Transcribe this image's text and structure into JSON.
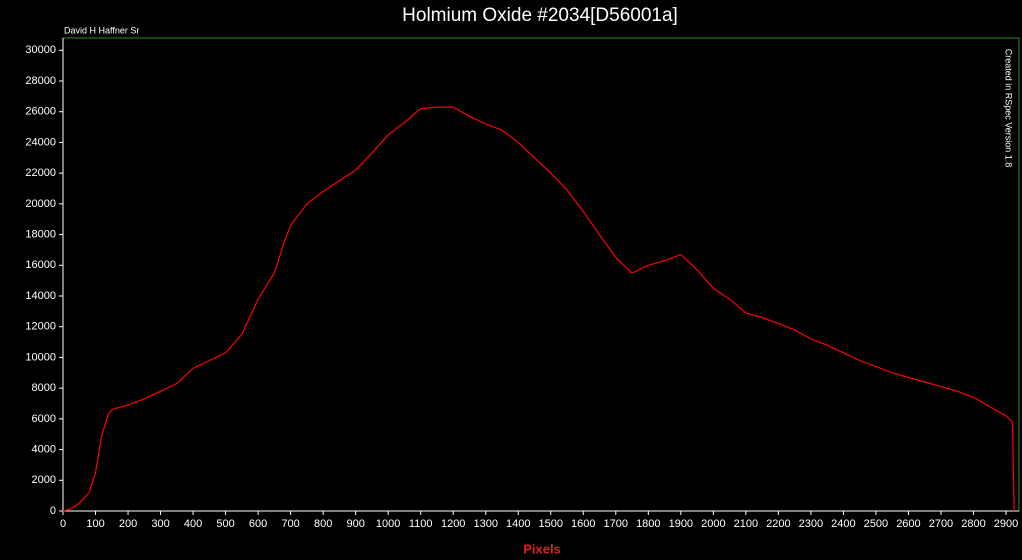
{
  "chart_data": {
    "type": "line",
    "title": "Holmium Oxide #2034[D56001a]",
    "author": "David H Haffner Sr",
    "note": "Created in RSpec Version 1.8",
    "x_label": "Pixels",
    "xlim": [
      0,
      2940
    ],
    "ylim": [
      0,
      30800
    ],
    "xticks": [
      0,
      100,
      200,
      300,
      400,
      500,
      600,
      700,
      800,
      900,
      1000,
      1100,
      1200,
      1300,
      1400,
      1500,
      1600,
      1700,
      1800,
      1900,
      2000,
      2100,
      2200,
      2300,
      2400,
      2500,
      2600,
      2700,
      2800,
      2900
    ],
    "yticks": [
      0,
      2000,
      4000,
      6000,
      8000,
      10000,
      12000,
      14000,
      16000,
      18000,
      20000,
      22000,
      24000,
      26000,
      28000,
      30000
    ],
    "series": [
      {
        "color": "#ff0000",
        "x": [
          0,
          20,
          50,
          80,
          100,
          120,
          140,
          150,
          200,
          250,
          300,
          350,
          400,
          450,
          500,
          550,
          600,
          650,
          680,
          700,
          750,
          800,
          850,
          900,
          950,
          1000,
          1050,
          1100,
          1150,
          1200,
          1250,
          1300,
          1350,
          1400,
          1450,
          1500,
          1550,
          1600,
          1650,
          1700,
          1750,
          1800,
          1850,
          1900,
          1950,
          2000,
          2050,
          2100,
          2150,
          2200,
          2250,
          2300,
          2350,
          2400,
          2450,
          2500,
          2550,
          2600,
          2650,
          2700,
          2750,
          2800,
          2850,
          2900,
          2920,
          2925
        ],
        "values": [
          0,
          100,
          500,
          1200,
          2500,
          5000,
          6300,
          6600,
          6900,
          7300,
          7800,
          8300,
          9300,
          9800,
          10300,
          11500,
          13800,
          15500,
          17500,
          18600,
          20000,
          20800,
          21500,
          22200,
          23300,
          24500,
          25300,
          26200,
          26300,
          26300,
          25700,
          25200,
          24800,
          24000,
          23000,
          22000,
          20900,
          19500,
          18000,
          16500,
          15500,
          16000,
          16300,
          16700,
          15700,
          14500,
          13800,
          12900,
          12600,
          12200,
          11800,
          11200,
          10800,
          10300,
          9800,
          9400,
          9000,
          8700,
          8400,
          8100,
          7800,
          7400,
          6800,
          6200,
          5800,
          0
        ]
      }
    ]
  }
}
